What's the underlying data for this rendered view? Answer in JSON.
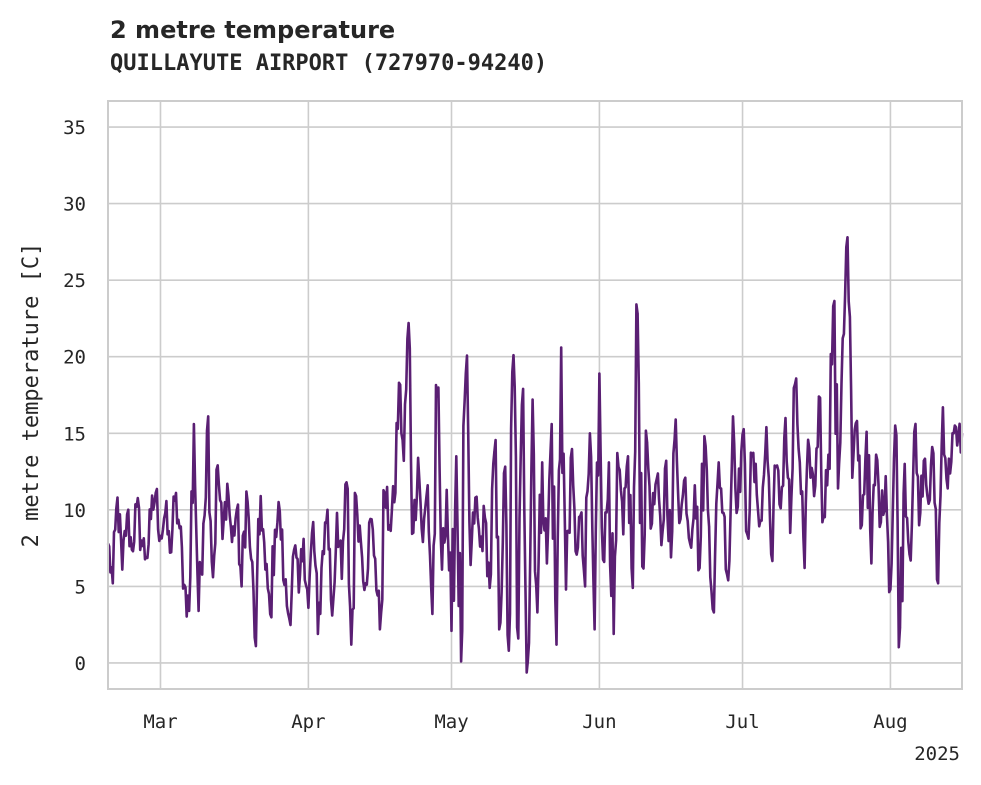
{
  "chart_data": {
    "type": "line",
    "title": "2 metre temperature",
    "subtitle": "QUILLAYUTE AIRPORT (727970-94240)",
    "xlabel": "",
    "ylabel": "2 metre temperature [C]",
    "x_ticks": [
      "Mar",
      "Apr",
      "May",
      "Jun",
      "Jul",
      "Aug"
    ],
    "x_tick_dates": [
      "2025-03-01",
      "2025-04-01",
      "2025-05-01",
      "2025-06-01",
      "2025-07-01",
      "2025-08-01"
    ],
    "x_offset_label": "2025",
    "xlim": [
      "2025-02-18",
      "2025-08-16"
    ],
    "y_ticks": [
      0,
      5,
      10,
      15,
      20,
      25,
      30,
      35
    ],
    "ylim": [
      -1.7,
      36.7
    ],
    "grid": true,
    "legend": "none",
    "series": [
      {
        "color": "#5a1f73",
        "points": [
          [
            "2025-02-18",
            7.8
          ],
          [
            "2025-02-19",
            5.2
          ],
          [
            "2025-02-20",
            10.8
          ],
          [
            "2025-02-21",
            6.1
          ],
          [
            "2025-02-22",
            9.7
          ],
          [
            "2025-02-23",
            7.4
          ],
          [
            "2025-02-24",
            10.2
          ],
          [
            "2025-02-25",
            8.0
          ],
          [
            "2025-02-26",
            6.9
          ],
          [
            "2025-02-27",
            9.4
          ],
          [
            "2025-02-28",
            11.1
          ],
          [
            "2025-03-01",
            8.3
          ],
          [
            "2025-03-02",
            9.8
          ],
          [
            "2025-03-03",
            7.2
          ],
          [
            "2025-03-04",
            10.6
          ],
          [
            "2025-03-05",
            8.8
          ],
          [
            "2025-03-06",
            5.1
          ],
          [
            "2025-03-07",
            3.4
          ],
          [
            "2025-03-08",
            15.6
          ],
          [
            "2025-03-09",
            3.4
          ],
          [
            "2025-03-10",
            9.1
          ],
          [
            "2025-03-11",
            16.1
          ],
          [
            "2025-03-12",
            5.6
          ],
          [
            "2025-03-13",
            12.9
          ],
          [
            "2025-03-14",
            8.1
          ],
          [
            "2025-03-15",
            11.7
          ],
          [
            "2025-03-16",
            7.9
          ],
          [
            "2025-03-17",
            10.0
          ],
          [
            "2025-03-18",
            5.0
          ],
          [
            "2025-03-19",
            11.2
          ],
          [
            "2025-03-20",
            6.8
          ],
          [
            "2025-03-21",
            1.1
          ],
          [
            "2025-03-22",
            10.9
          ],
          [
            "2025-03-23",
            6.1
          ],
          [
            "2025-03-24",
            3.2
          ],
          [
            "2025-03-25",
            8.7
          ],
          [
            "2025-03-26",
            9.9
          ],
          [
            "2025-03-27",
            5.1
          ],
          [
            "2025-03-28",
            2.9
          ],
          [
            "2025-03-29",
            7.4
          ],
          [
            "2025-03-30",
            4.6
          ],
          [
            "2025-03-31",
            8.1
          ],
          [
            "2025-04-01",
            3.6
          ],
          [
            "2025-04-02",
            9.2
          ],
          [
            "2025-04-03",
            1.9
          ],
          [
            "2025-04-04",
            7.3
          ],
          [
            "2025-04-05",
            10.0
          ],
          [
            "2025-04-06",
            3.1
          ],
          [
            "2025-04-07",
            9.8
          ],
          [
            "2025-04-08",
            5.5
          ],
          [
            "2025-04-09",
            11.8
          ],
          [
            "2025-04-10",
            1.2
          ],
          [
            "2025-04-11",
            10.9
          ],
          [
            "2025-04-12",
            7.9
          ],
          [
            "2025-04-13",
            5.2
          ],
          [
            "2025-04-14",
            9.4
          ],
          [
            "2025-04-15",
            6.8
          ],
          [
            "2025-04-16",
            2.2
          ],
          [
            "2025-04-17",
            11.1
          ],
          [
            "2025-04-18",
            9.0
          ],
          [
            "2025-04-19",
            10.5
          ],
          [
            "2025-04-20",
            18.3
          ],
          [
            "2025-04-21",
            13.2
          ],
          [
            "2025-04-22",
            22.2
          ],
          [
            "2025-04-23",
            8.5
          ],
          [
            "2025-04-24",
            13.4
          ],
          [
            "2025-04-25",
            7.9
          ],
          [
            "2025-04-26",
            11.6
          ],
          [
            "2025-04-27",
            3.2
          ],
          [
            "2025-04-28",
            17.4
          ],
          [
            "2025-04-29",
            6.1
          ],
          [
            "2025-04-30",
            11.3
          ],
          [
            "2025-05-01",
            2.1
          ],
          [
            "2025-05-02",
            13.5
          ],
          [
            "2025-05-03",
            0.1
          ],
          [
            "2025-05-04",
            18.9
          ],
          [
            "2025-05-05",
            6.4
          ],
          [
            "2025-05-06",
            10.8
          ],
          [
            "2025-05-07",
            7.6
          ],
          [
            "2025-05-08",
            9.5
          ],
          [
            "2025-05-09",
            4.9
          ],
          [
            "2025-05-10",
            13.8
          ],
          [
            "2025-05-11",
            2.2
          ],
          [
            "2025-05-12",
            12.4
          ],
          [
            "2025-05-13",
            0.8
          ],
          [
            "2025-05-14",
            20.1
          ],
          [
            "2025-05-15",
            1.6
          ],
          [
            "2025-05-16",
            17.9
          ],
          [
            "2025-05-17",
            0.1
          ],
          [
            "2025-05-18",
            17.2
          ],
          [
            "2025-05-19",
            3.3
          ],
          [
            "2025-05-20",
            13.1
          ],
          [
            "2025-05-21",
            6.5
          ],
          [
            "2025-05-22",
            15.6
          ],
          [
            "2025-05-23",
            1.2
          ],
          [
            "2025-05-24",
            20.6
          ],
          [
            "2025-05-25",
            4.8
          ],
          [
            "2025-05-26",
            13.4
          ],
          [
            "2025-05-27",
            7.3
          ],
          [
            "2025-05-28",
            9.6
          ],
          [
            "2025-05-29",
            5.0
          ],
          [
            "2025-05-30",
            15.0
          ],
          [
            "2025-05-31",
            2.2
          ],
          [
            "2025-06-01",
            18.9
          ],
          [
            "2025-06-02",
            6.6
          ],
          [
            "2025-06-03",
            13.1
          ],
          [
            "2025-06-04",
            1.9
          ],
          [
            "2025-06-05",
            12.8
          ],
          [
            "2025-06-06",
            8.4
          ],
          [
            "2025-06-07",
            13.5
          ],
          [
            "2025-06-08",
            4.9
          ],
          [
            "2025-06-09",
            22.8
          ],
          [
            "2025-06-10",
            6.3
          ],
          [
            "2025-06-11",
            14.4
          ],
          [
            "2025-06-12",
            9.1
          ],
          [
            "2025-06-13",
            12.0
          ],
          [
            "2025-06-14",
            7.7
          ],
          [
            "2025-06-15",
            13.2
          ],
          [
            "2025-06-16",
            6.9
          ],
          [
            "2025-06-17",
            15.9
          ],
          [
            "2025-06-18",
            9.4
          ],
          [
            "2025-06-19",
            12.1
          ],
          [
            "2025-06-20",
            7.8
          ],
          [
            "2025-06-21",
            11.6
          ],
          [
            "2025-06-22",
            6.2
          ],
          [
            "2025-06-23",
            14.8
          ],
          [
            "2025-06-24",
            8.9
          ],
          [
            "2025-06-25",
            3.3
          ],
          [
            "2025-06-26",
            13.1
          ],
          [
            "2025-06-27",
            9.8
          ],
          [
            "2025-06-28",
            5.4
          ],
          [
            "2025-06-29",
            16.1
          ],
          [
            "2025-06-30",
            10.2
          ],
          [
            "2025-07-01",
            14.9
          ],
          [
            "2025-07-02",
            8.4
          ],
          [
            "2025-07-03",
            13.5
          ],
          [
            "2025-07-04",
            11.0
          ],
          [
            "2025-07-05",
            9.3
          ],
          [
            "2025-07-06",
            15.4
          ],
          [
            "2025-07-07",
            7.1
          ],
          [
            "2025-07-08",
            12.8
          ],
          [
            "2025-07-09",
            10.1
          ],
          [
            "2025-07-10",
            16.0
          ],
          [
            "2025-07-11",
            8.5
          ],
          [
            "2025-07-12",
            18.2
          ],
          [
            "2025-07-13",
            13.1
          ],
          [
            "2025-07-14",
            6.2
          ],
          [
            "2025-07-15",
            14.0
          ],
          [
            "2025-07-16",
            10.9
          ],
          [
            "2025-07-17",
            17.4
          ],
          [
            "2025-07-18",
            9.6
          ],
          [
            "2025-07-19",
            13.6
          ],
          [
            "2025-07-20",
            23.3
          ],
          [
            "2025-07-21",
            11.4
          ],
          [
            "2025-07-22",
            21.2
          ],
          [
            "2025-07-23",
            27.8
          ],
          [
            "2025-07-24",
            12.1
          ],
          [
            "2025-07-25",
            15.8
          ],
          [
            "2025-07-26",
            9.0
          ],
          [
            "2025-07-27",
            15.1
          ],
          [
            "2025-07-28",
            6.5
          ],
          [
            "2025-07-29",
            13.6
          ],
          [
            "2025-07-30",
            9.2
          ],
          [
            "2025-07-31",
            12.2
          ],
          [
            "2025-08-01",
            4.8
          ],
          [
            "2025-08-02",
            15.5
          ],
          [
            "2025-08-03",
            2.3
          ],
          [
            "2025-08-04",
            13.0
          ],
          [
            "2025-08-05",
            7.1
          ],
          [
            "2025-08-06",
            15.1
          ],
          [
            "2025-08-07",
            9.0
          ],
          [
            "2025-08-08",
            13.2
          ],
          [
            "2025-08-09",
            10.4
          ],
          [
            "2025-08-10",
            13.7
          ],
          [
            "2025-08-11",
            5.2
          ],
          [
            "2025-08-12",
            16.7
          ],
          [
            "2025-08-13",
            11.4
          ],
          [
            "2025-08-14",
            15.0
          ],
          [
            "2025-08-15",
            14.2
          ],
          [
            "2025-08-16",
            15.0
          ]
        ]
      }
    ]
  }
}
